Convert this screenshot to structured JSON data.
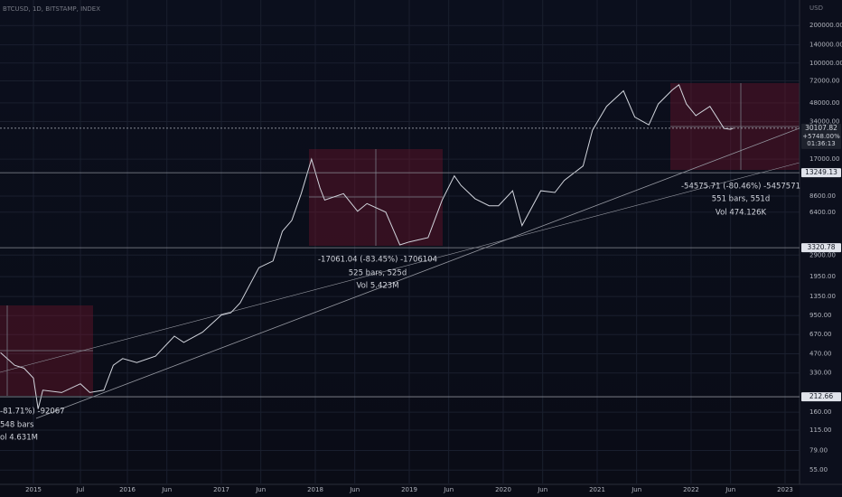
{
  "chart_data": {
    "type": "line",
    "title": "BTCUSD, 1D, BITSTAMP, INDEX",
    "y_axis_label": "USD",
    "log_scale": true,
    "grid": true,
    "xlim": [
      2014.644,
      2023.154
    ],
    "ylim": [
      43,
      320000
    ],
    "xticks": [
      2015,
      {
        "value": 2015.5,
        "label": "Jul"
      },
      2016,
      {
        "value": 2016.42,
        "label": "Jun"
      },
      2017,
      {
        "value": 2017.42,
        "label": "Jun"
      },
      2018,
      {
        "value": 2018.42,
        "label": "Jun"
      },
      2019,
      {
        "value": 2019.42,
        "label": "Jun"
      },
      2020,
      {
        "value": 2020.42,
        "label": "Jun"
      },
      2021,
      {
        "value": 2021.42,
        "label": "Jun"
      },
      2022,
      {
        "value": 2022.42,
        "label": "Jun"
      },
      2023
    ],
    "yticks": [
      {
        "value": 200000,
        "label": "200000.00"
      },
      {
        "value": 140000,
        "label": "140000.00"
      },
      {
        "value": 100000,
        "label": "100000.00"
      },
      {
        "value": 72000,
        "label": "72000.00"
      },
      {
        "value": 48000,
        "label": "48000.00"
      },
      {
        "value": 34000,
        "label": "34000.00"
      },
      {
        "value": 17000,
        "label": "17000.00"
      },
      {
        "value": 8600,
        "label": "8600.00"
      },
      {
        "value": 6400,
        "label": "6400.00"
      },
      {
        "value": 2900,
        "label": "2900.00"
      },
      {
        "value": 1950,
        "label": "1950.00"
      },
      {
        "value": 1350,
        "label": "1350.00"
      },
      {
        "value": 950,
        "label": "950.00"
      },
      {
        "value": 670,
        "label": "670.00"
      },
      {
        "value": 470,
        "label": "470.00"
      },
      {
        "value": 330,
        "label": "330.00"
      },
      {
        "value": 160,
        "label": "160.00"
      },
      {
        "value": 115,
        "label": "115.00"
      },
      {
        "value": 79,
        "label": "79.00"
      },
      {
        "value": 55,
        "label": "55.00"
      }
    ],
    "series": [
      {
        "name": "BTCUSD",
        "color": "#d1d4dc",
        "x": [
          2014.65,
          2014.8,
          2014.9,
          2015.0,
          2015.05,
          2015.1,
          2015.3,
          2015.5,
          2015.6,
          2015.75,
          2015.85,
          2015.95,
          2016.1,
          2016.3,
          2016.5,
          2016.6,
          2016.8,
          2017.0,
          2017.1,
          2017.2,
          2017.4,
          2017.55,
          2017.65,
          2017.75,
          2017.85,
          2017.96,
          2018.05,
          2018.1,
          2018.3,
          2018.45,
          2018.55,
          2018.75,
          2018.9,
          2019.0,
          2019.2,
          2019.35,
          2019.48,
          2019.55,
          2019.7,
          2019.85,
          2019.95,
          2020.1,
          2020.2,
          2020.4,
          2020.55,
          2020.65,
          2020.85,
          2020.95,
          2021.1,
          2021.28,
          2021.4,
          2021.55,
          2021.65,
          2021.8,
          2021.87,
          2021.95,
          2022.05,
          2022.2,
          2022.35,
          2022.42,
          2022.45
        ],
        "values": [
          480,
          380,
          360,
          300,
          170,
          240,
          230,
          270,
          230,
          240,
          380,
          430,
          400,
          450,
          650,
          580,
          700,
          960,
          1000,
          1200,
          2300,
          2600,
          4500,
          5500,
          9000,
          17000,
          10000,
          8000,
          9000,
          6500,
          7500,
          6400,
          3500,
          3700,
          4000,
          8000,
          12500,
          10500,
          8200,
          7200,
          7200,
          9500,
          5000,
          9500,
          9200,
          11500,
          15000,
          29000,
          45000,
          60000,
          37000,
          32000,
          47000,
          61000,
          67000,
          47000,
          38000,
          45000,
          30000,
          29500,
          30107
        ]
      }
    ],
    "levels": [
      30107.82,
      13249.13,
      3320.78,
      212.66
    ],
    "price_change": "+5748.00%",
    "countdown": "01:36:13",
    "annotations": [
      [
        "-17061.04 (-83.45%) -1706104",
        "525 bars, 525d",
        "Vol 5.423M"
      ],
      [
        "-54575.71 (-80.46%) -5457571",
        "551 bars, 551d",
        "Vol 474.126K"
      ],
      [
        "-81.71%) -92067",
        "548 bars",
        "ol 4.631M"
      ]
    ]
  }
}
